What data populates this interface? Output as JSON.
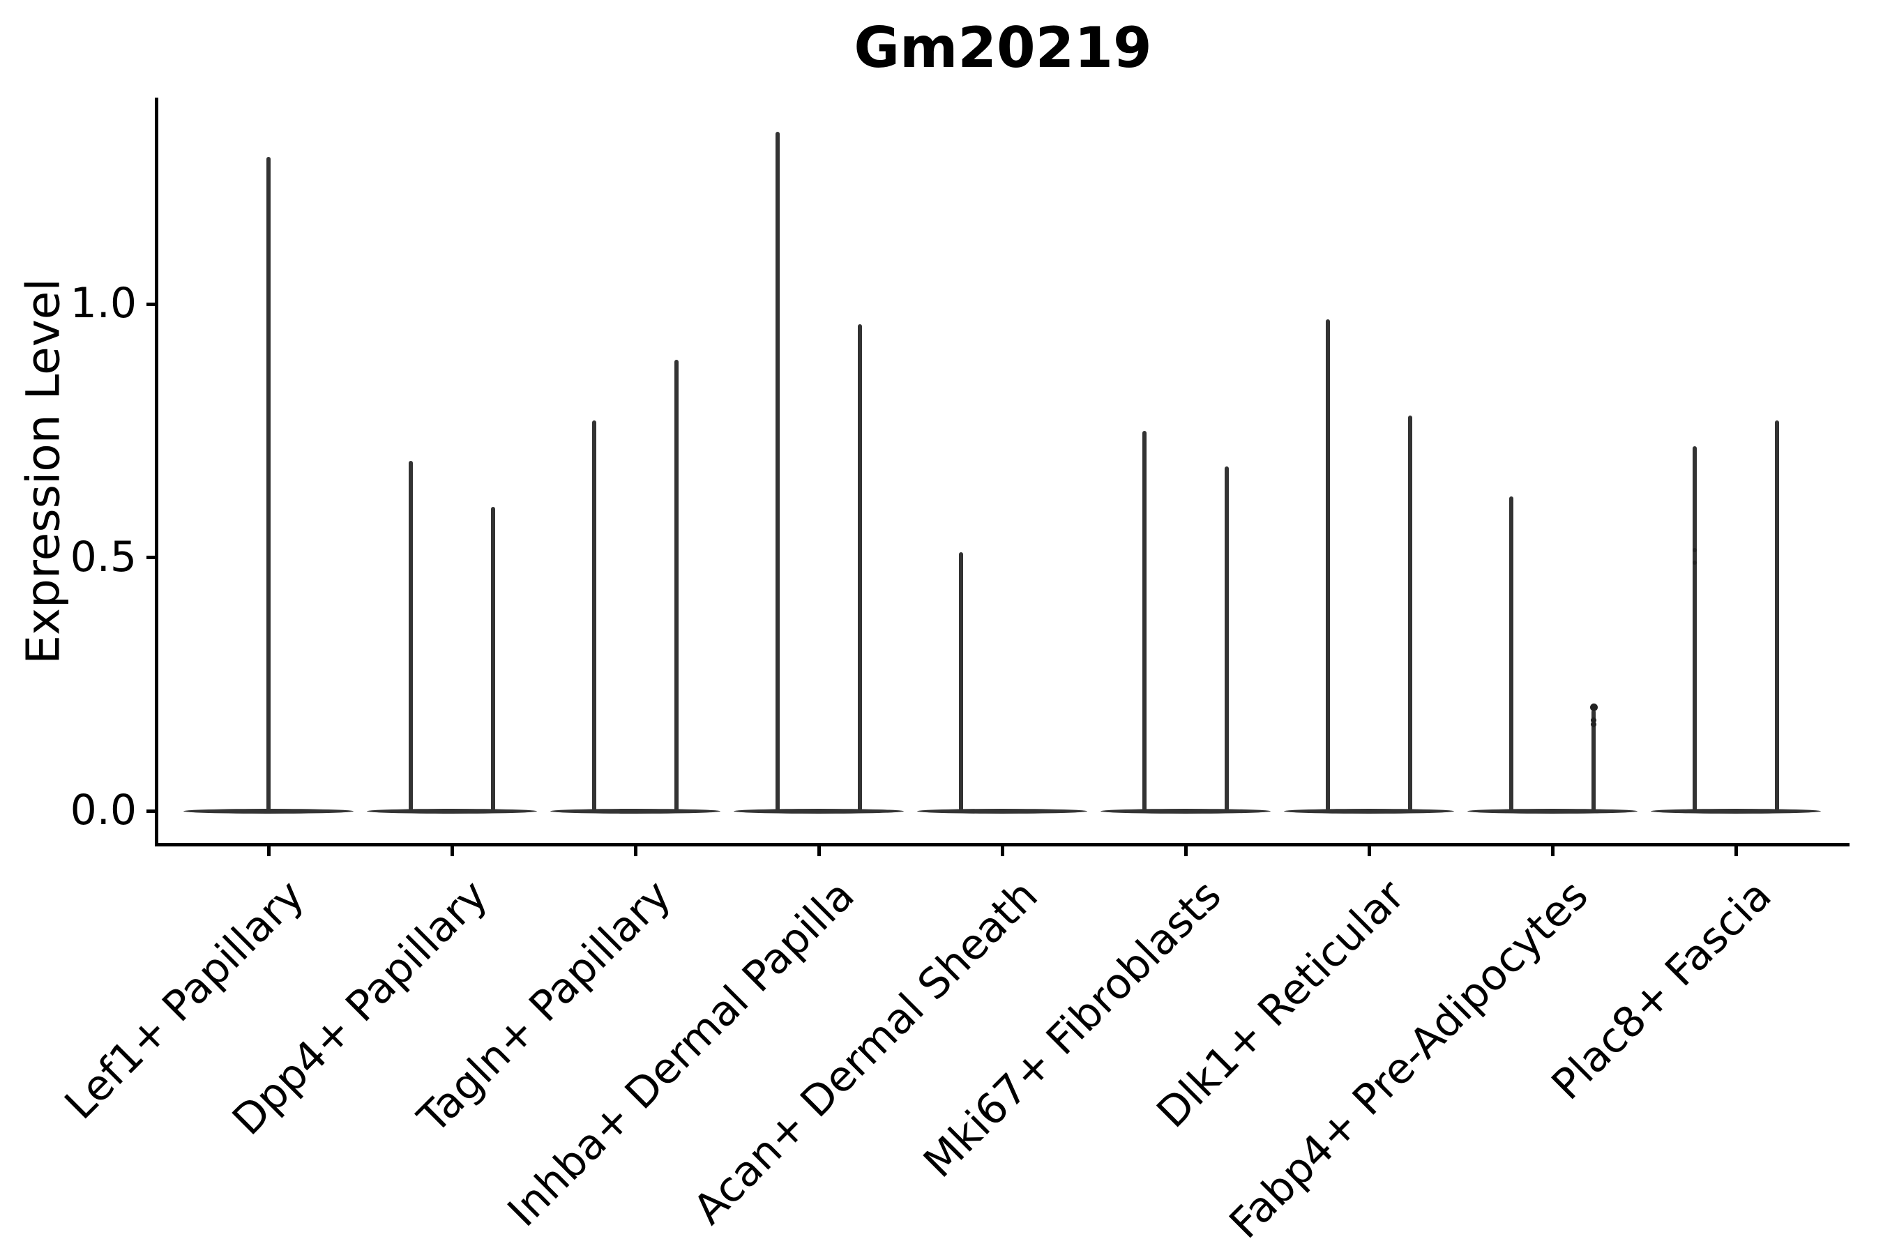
{
  "chart_data": {
    "type": "violin",
    "title": "Gm20219",
    "xlabel": "",
    "ylabel": "Expression Level",
    "yticks": [
      0.0,
      0.5,
      1.0
    ],
    "ytick_labels": [
      "0.0",
      "0.5",
      "1.0"
    ],
    "ylim": [
      -0.075,
      1.41
    ],
    "grid": false,
    "legend": "none",
    "violin_style": "needle-thin violins with flat wide base at 0; up to two dodged violins per category",
    "baseline_value": 0.0,
    "categories": [
      {
        "label": "Lef1+ Papillary",
        "spikes": [
          {
            "pos": "center",
            "max": 1.29
          }
        ]
      },
      {
        "label": "Dpp4+ Papillary",
        "spikes": [
          {
            "pos": "left",
            "max": 0.69
          },
          {
            "pos": "right",
            "max": 0.6
          }
        ]
      },
      {
        "label": "Tagln+ Papillary",
        "spikes": [
          {
            "pos": "left",
            "max": 0.77
          },
          {
            "pos": "right",
            "max": 0.89
          }
        ]
      },
      {
        "label": "Inhba+ Dermal Papilla",
        "spikes": [
          {
            "pos": "left",
            "max": 1.34
          },
          {
            "pos": "right",
            "max": 0.96
          }
        ]
      },
      {
        "label": "Acan+ Dermal Sheath",
        "spikes": [
          {
            "pos": "left",
            "max": 0.51
          }
        ]
      },
      {
        "label": "Mki67+ Fibroblasts",
        "spikes": [
          {
            "pos": "left",
            "max": 0.75
          },
          {
            "pos": "right",
            "max": 0.68
          }
        ]
      },
      {
        "label": "Dlk1+ Reticular",
        "spikes": [
          {
            "pos": "left",
            "max": 0.97
          },
          {
            "pos": "right",
            "max": 0.78
          }
        ]
      },
      {
        "label": "Fabp4+ Pre-Adipocytes",
        "spikes": [
          {
            "pos": "left",
            "max": 0.62
          },
          {
            "pos": "right",
            "max": 0.2
          }
        ],
        "points": [
          {
            "pos": "right",
            "y": 0.204,
            "r": 11
          },
          {
            "pos": "right",
            "y": 0.179,
            "r": 8
          },
          {
            "pos": "right",
            "y": 0.171,
            "r": 8
          }
        ]
      },
      {
        "label": "Plac8+ Fascia",
        "spikes": [
          {
            "pos": "left",
            "max": 0.72
          },
          {
            "pos": "right",
            "max": 0.77
          }
        ],
        "points": [
          {
            "pos": "left",
            "y": 0.515,
            "r": 6
          },
          {
            "pos": "left",
            "y": 0.49,
            "r": 6
          }
        ]
      }
    ],
    "colors": {
      "violin": "#333333",
      "axis": "#000000",
      "text": "#000000",
      "background": "#ffffff"
    }
  }
}
